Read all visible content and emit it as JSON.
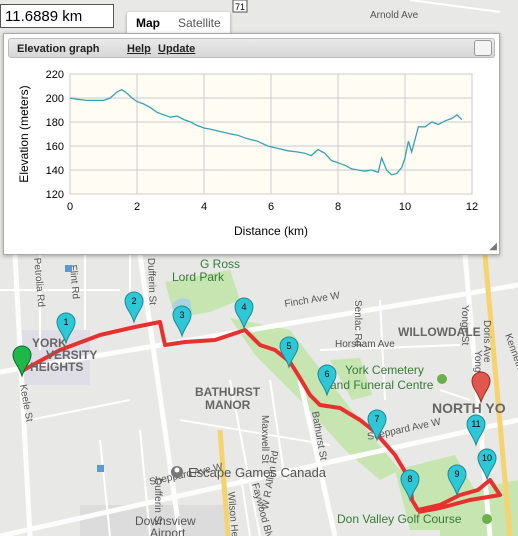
{
  "distance": "11.6889 km",
  "maptype": {
    "map": "Map",
    "satellite": "Satellite"
  },
  "elevation_panel": {
    "title": "Elevation graph",
    "help": "Help",
    "update": "Update"
  },
  "chart_data": {
    "type": "line",
    "xlabel": "Distance (km)",
    "ylabel": "Elevation (meters)",
    "xlim": [
      0,
      12
    ],
    "ylim": [
      120,
      220
    ],
    "xticks": [
      0,
      2,
      4,
      6,
      8,
      10,
      12
    ],
    "yticks": [
      120,
      140,
      160,
      180,
      200,
      220
    ],
    "grid": true,
    "line_color": "#3aa0b2",
    "x": [
      0,
      0.2,
      0.5,
      0.8,
      1.0,
      1.2,
      1.4,
      1.55,
      1.7,
      1.85,
      2.0,
      2.2,
      2.4,
      2.6,
      2.8,
      3.0,
      3.2,
      3.4,
      3.6,
      3.8,
      4.0,
      4.2,
      4.5,
      4.8,
      5.0,
      5.3,
      5.6,
      5.9,
      6.2,
      6.5,
      6.8,
      7.0,
      7.2,
      7.4,
      7.6,
      7.8,
      8.0,
      8.2,
      8.4,
      8.6,
      8.8,
      9.0,
      9.2,
      9.3,
      9.45,
      9.6,
      9.75,
      9.9,
      10.0,
      10.1,
      10.2,
      10.4,
      10.6,
      10.8,
      11.0,
      11.2,
      11.4,
      11.55,
      11.7
    ],
    "y": [
      200,
      199,
      198,
      198,
      198,
      200,
      205,
      207,
      204,
      200,
      197,
      195,
      192,
      188,
      186,
      184,
      185,
      182,
      180,
      177,
      175,
      174,
      172,
      170,
      169,
      166,
      164,
      160,
      158,
      156,
      155,
      154,
      152,
      157,
      154,
      148,
      146,
      144,
      141,
      140,
      139,
      140,
      138,
      150,
      140,
      136,
      137,
      142,
      150,
      164,
      155,
      176,
      176,
      180,
      178,
      181,
      183,
      186,
      182
    ]
  },
  "map": {
    "labels": {
      "g_ross": "G Ross",
      "lord_park": "Lord Park",
      "willowdale": "WILLOWDALE",
      "york_univ_1": "YORK",
      "york_univ_2": "VERSITY",
      "york_univ_3": "HEIGHTS",
      "york_cemetery_1": "York Cemetery",
      "york_cemetery_2": "and Funeral Centre",
      "north_york": "NORTH YO",
      "bathurst_manor_1": "BATHURST",
      "bathurst_manor_2": "MANOR",
      "escape_games": "Escape Games Canada",
      "downsview_1": "Downsview",
      "downsview_2": "Airport",
      "don_valley": "Don Valley Golf Course",
      "highway_71": "71"
    },
    "streets": {
      "finch_ave_w": "Finch Ave W",
      "sheppard_ave_w": "Sheppard Ave W",
      "sheppard_ave_w_2": "Sheppard Ave W",
      "arnold_ave": "Arnold Ave",
      "horsham_ave": "Horsham Ave",
      "senlac_rd": "Senlac Rd",
      "yonge_st": "Yonge St",
      "yonge_st_2": "Yonge St",
      "doris_ave": "Doris Ave",
      "kenneth": "Kenneth",
      "dufferin_st": "Dufferin St",
      "dufferin_st_2": "Dufferin St",
      "bathurst_st": "Bathurst St",
      "maxwell_st": "Maxwell St",
      "keele_st": "Keele St",
      "flint_rd": "Flint Rd",
      "petrolia_rd": "Petrolia Rd",
      "wilson_heights": "Wilson Hei",
      "faywood_blvd": "Faywood Blvd",
      "allen_rd": "W R Allen Rd"
    },
    "markers": [
      "1",
      "2",
      "3",
      "4",
      "5",
      "6",
      "7",
      "8",
      "9",
      "10",
      "11"
    ]
  }
}
